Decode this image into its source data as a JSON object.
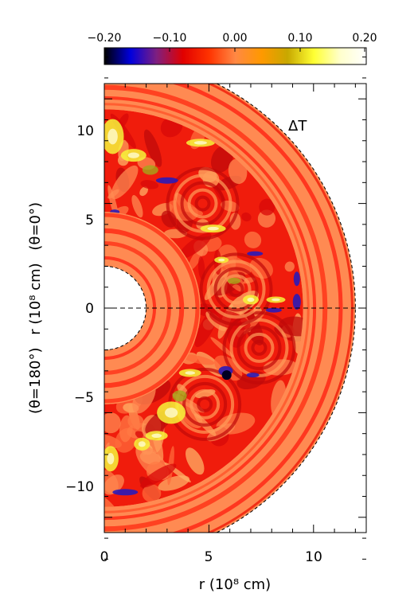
{
  "chart_data": {
    "type": "heatmap",
    "geometry": "half-annulus (meridional slice)",
    "field_label": "ΔT",
    "colorbar": {
      "ticks": [
        "−0.20",
        "−0.10",
        "0.00",
        "0.10",
        "0.20"
      ],
      "range": [
        -0.2,
        0.2
      ],
      "colors": [
        "#000000",
        "#0000dd",
        "#7f1f7f",
        "#e10000",
        "#ff3300",
        "#ff8844",
        "#ff9900",
        "#c8a800",
        "#ffff33",
        "#ffffcc",
        "#ffffff"
      ]
    },
    "x_axis": {
      "label": "r (10⁸ cm)",
      "ticks": [
        "0",
        "5",
        "10"
      ],
      "range": [
        0,
        12.5
      ]
    },
    "y_axis": {
      "label_parts": [
        "(θ=180°)",
        "r (10⁸ cm)",
        "(θ=0°)"
      ],
      "ticks": [
        "−10",
        "−5",
        "0",
        "5",
        "10"
      ],
      "range": [
        -12.5,
        12.5
      ]
    },
    "inner_radius": 2.0,
    "interface_radius": 4.6,
    "convective_outer_radius": 9.5,
    "outer_radius": 12.0
  }
}
